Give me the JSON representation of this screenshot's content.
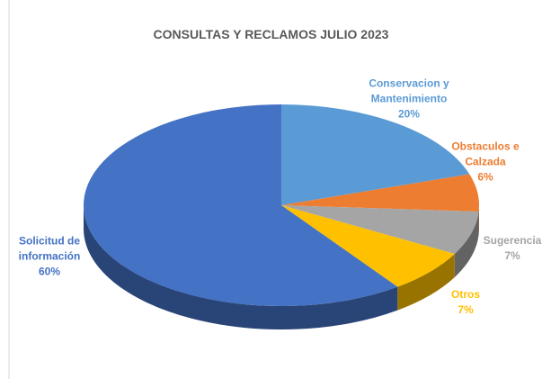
{
  "chart_data": {
    "type": "pie",
    "title": "CONSULTAS Y RECLAMOS JULIO 2023",
    "categories": [
      "Conservacion y Mantenimiento",
      "Obstaculos e Calzada",
      "Sugerencia",
      "Otros",
      "Solicitud de información"
    ],
    "values": [
      20,
      6,
      7,
      7,
      60
    ],
    "value_labels": [
      "20%",
      "6%",
      "7%",
      "7%",
      "60%"
    ],
    "colors": [
      "#5b9bd5",
      "#ed7d31",
      "#a5a5a5",
      "#ffc000",
      "#4472c4"
    ]
  }
}
